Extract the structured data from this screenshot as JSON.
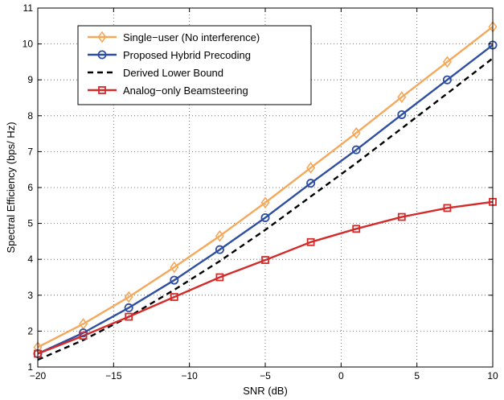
{
  "chart_data": {
    "type": "line",
    "xlabel": "SNR (dB)",
    "ylabel": "Spectral Efficiency (bps/ Hz)",
    "xlim": [
      -20,
      10
    ],
    "ylim": [
      1,
      11
    ],
    "xticks": [
      -20,
      -15,
      -10,
      -5,
      0,
      5,
      10
    ],
    "yticks": [
      1,
      2,
      3,
      4,
      5,
      6,
      7,
      8,
      9,
      10,
      11
    ],
    "xtick_labels": [
      "−20",
      "−15",
      "−10",
      "−5",
      "0",
      "5",
      "10"
    ],
    "ytick_labels": [
      "1",
      "2",
      "3",
      "4",
      "5",
      "6",
      "7",
      "8",
      "9",
      "10",
      "11"
    ],
    "grid": true,
    "legend_position": "top-left",
    "series": [
      {
        "name": "Single−user (No interference)",
        "color": "#f5a85a",
        "marker": "diamond",
        "dash": "solid",
        "x": [
          -20,
          -17,
          -14,
          -11,
          -8,
          -5,
          -2,
          1,
          4,
          7,
          10
        ],
        "y": [
          1.55,
          2.2,
          2.95,
          3.78,
          4.65,
          5.58,
          6.55,
          7.52,
          8.52,
          9.5,
          10.48
        ]
      },
      {
        "name": "Proposed Hybrid Precoding",
        "color": "#2e4ea1",
        "marker": "circle",
        "dash": "solid",
        "x": [
          -20,
          -17,
          -14,
          -11,
          -8,
          -5,
          -2,
          1,
          4,
          7,
          10
        ],
        "y": [
          1.37,
          1.95,
          2.65,
          3.42,
          4.27,
          5.16,
          6.12,
          7.05,
          8.03,
          9.0,
          9.97
        ]
      },
      {
        "name": "Derived Lower Bound",
        "color": "#000000",
        "marker": "none",
        "dash": "dashed",
        "x": [
          -20,
          -17,
          -14,
          -11,
          -8,
          -5,
          -2,
          1,
          4,
          7,
          10
        ],
        "y": [
          1.2,
          1.75,
          2.4,
          3.15,
          3.95,
          4.82,
          5.75,
          6.68,
          7.65,
          8.62,
          9.6
        ]
      },
      {
        "name": "Analog−only Beamsteering",
        "color": "#d42a2a",
        "marker": "square",
        "dash": "solid",
        "x": [
          -20,
          -17,
          -14,
          -11,
          -8,
          -5,
          -2,
          1,
          4,
          7,
          10
        ],
        "y": [
          1.37,
          1.87,
          2.4,
          2.95,
          3.5,
          3.98,
          4.48,
          4.85,
          5.18,
          5.43,
          5.6
        ]
      }
    ]
  }
}
